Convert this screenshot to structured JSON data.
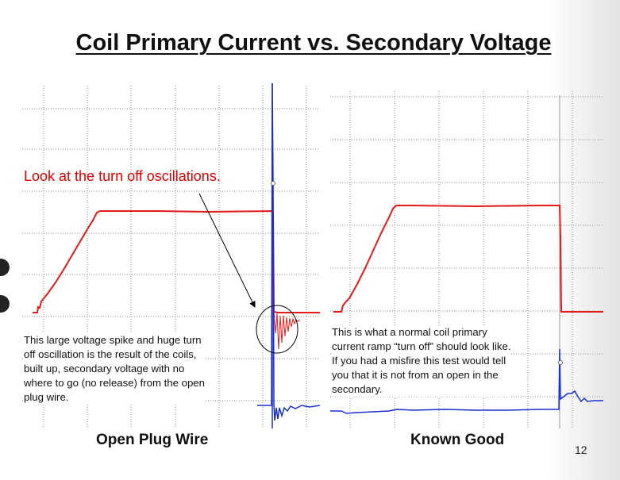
{
  "slide": {
    "title": "Coil Primary Current vs. Secondary Voltage",
    "page_number": "12"
  },
  "left_panel": {
    "callout": "Look at the turn off oscillations.",
    "description": [
      "This large voltage spike and huge turn",
      "off oscillation is the result of the coils,",
      "built up, secondary voltage with no",
      "where to go (no release) from the open",
      "plug wire."
    ],
    "caption": "Open Plug Wire"
  },
  "right_panel": {
    "description": [
      "This is what a normal coil primary",
      "current ramp “turn off” should look like.",
      "If you had a misfire this test would tell",
      "you that it is not from an open in the",
      "secondary."
    ],
    "caption": "Known Good"
  },
  "colors": {
    "primary_current_trace": "#e21b1b",
    "secondary_voltage_trace": "#1a2fd0",
    "callout_text": "#e00000",
    "grid": "#8a8a8a"
  },
  "icons": {
    "callout_arrow": "arrow-icon",
    "oscillation_highlight": "circle-highlight-icon",
    "slide_nav": "nav-dot-icon"
  }
}
